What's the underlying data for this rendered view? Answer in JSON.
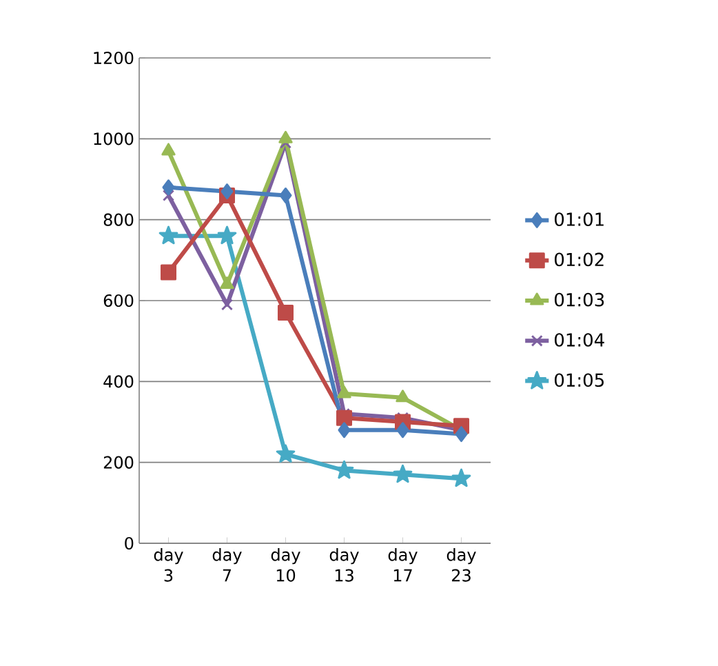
{
  "chart_data": {
    "type": "line",
    "categories": [
      "day 3",
      "day 7",
      "day 10",
      "day 13",
      "day 17",
      "day 23"
    ],
    "series": [
      {
        "name": "01:01",
        "color": "#4a7ebb",
        "marker": "diamond",
        "values": [
          880,
          870,
          860,
          280,
          280,
          270
        ]
      },
      {
        "name": "01:02",
        "color": "#be4b48",
        "marker": "square",
        "values": [
          670,
          860,
          570,
          310,
          300,
          290
        ]
      },
      {
        "name": "01:03",
        "color": "#98b954",
        "marker": "triangle",
        "values": [
          970,
          640,
          1000,
          370,
          360,
          280
        ]
      },
      {
        "name": "01:04",
        "color": "#7d60a0",
        "marker": "cross",
        "values": [
          860,
          590,
          990,
          320,
          310,
          280
        ]
      },
      {
        "name": "01:05",
        "color": "#46aac5",
        "marker": "star",
        "values": [
          760,
          760,
          220,
          180,
          170,
          160
        ]
      }
    ],
    "ylim": [
      0,
      1200
    ],
    "yticks": [
      0,
      200,
      400,
      600,
      800,
      1000,
      1200
    ],
    "grid": "y",
    "legend": "right",
    "line_style": "solid"
  }
}
